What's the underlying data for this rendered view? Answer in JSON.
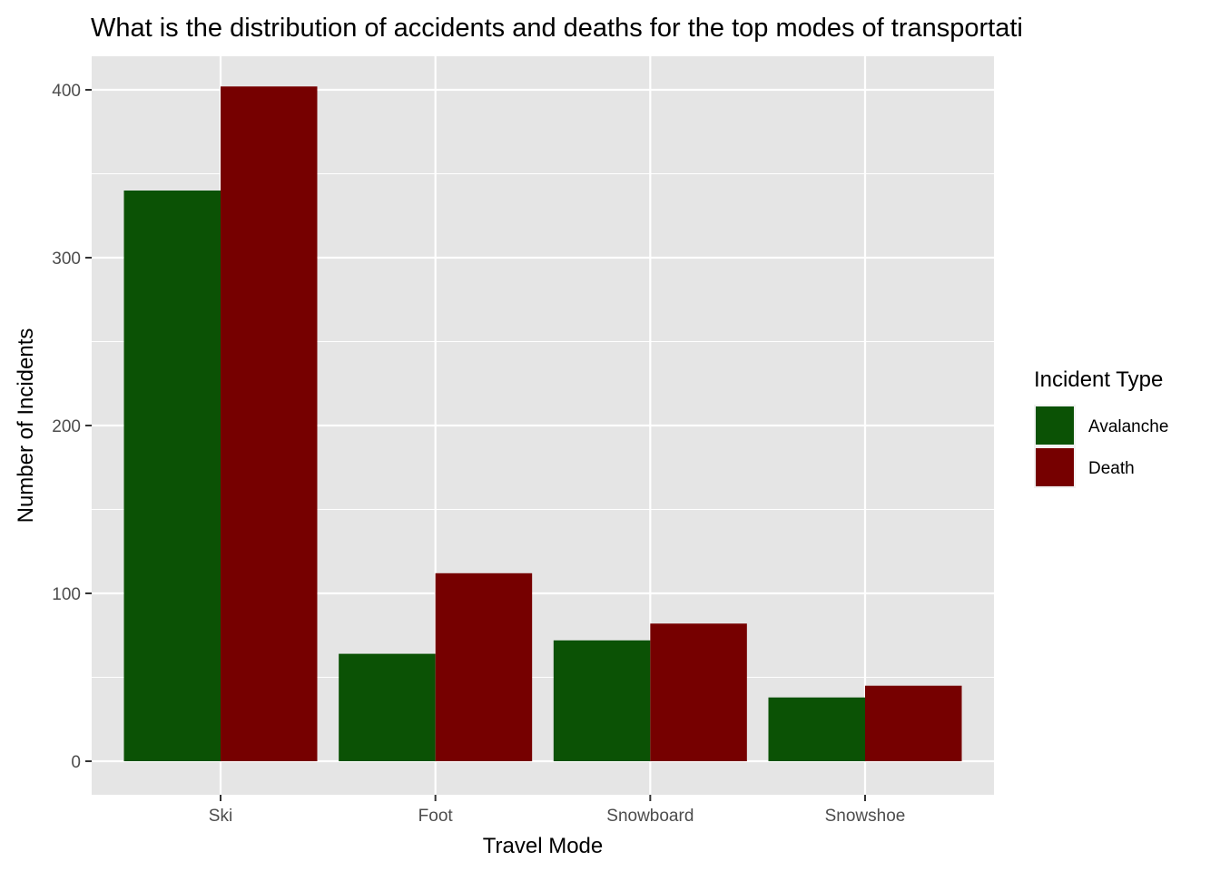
{
  "chart_data": {
    "type": "bar",
    "title": "What is the distribution of accidents and deaths for the top modes of transportati",
    "xlabel": "Travel Mode",
    "ylabel": "Number of Incidents",
    "categories": [
      "Ski",
      "Foot",
      "Snowboard",
      "Snowshoe"
    ],
    "series": [
      {
        "name": "Avalanche",
        "color": "#0b5205",
        "values": [
          340,
          64,
          72,
          38
        ]
      },
      {
        "name": "Death",
        "color": "#760000",
        "values": [
          402,
          112,
          82,
          45
        ]
      }
    ],
    "ylim": [
      -20,
      420
    ],
    "yticks": [
      0,
      100,
      200,
      300,
      400
    ],
    "grid": true,
    "legend_title": "Incident Type",
    "legend_position": "right",
    "panel_background": "#e5e5e5",
    "grid_color": "#ffffff"
  }
}
